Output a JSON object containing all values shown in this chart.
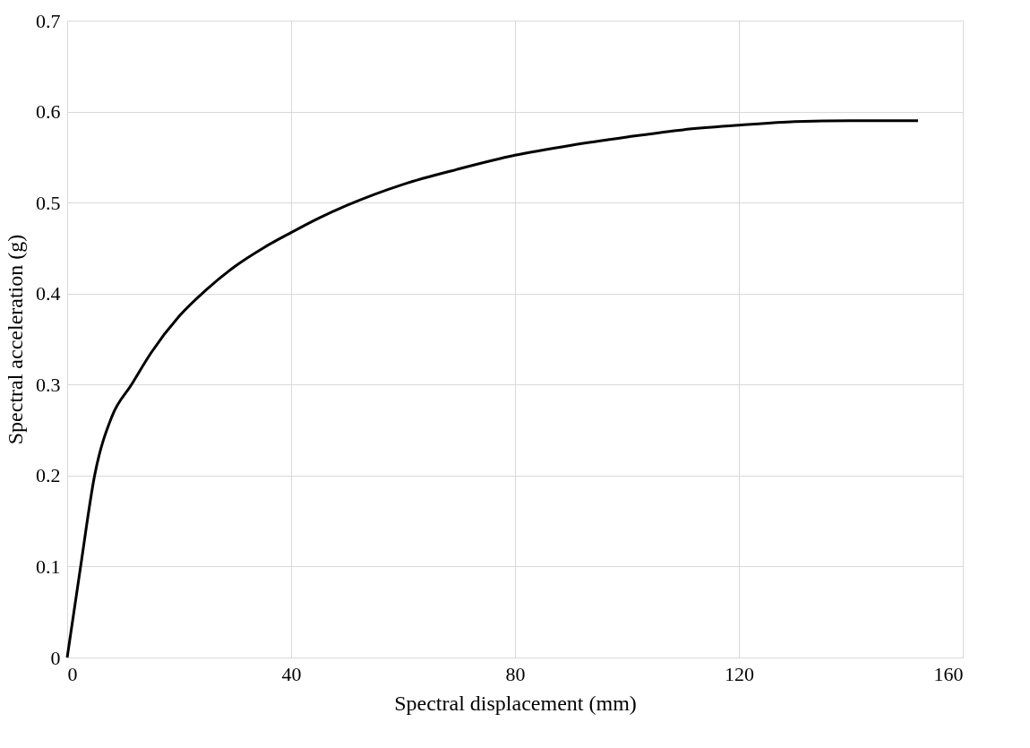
{
  "chart_data": {
    "type": "line",
    "xlabel": "Spectral displacement (mm)",
    "ylabel": "Spectral acceleration (g)",
    "x": [
      0,
      2.4,
      4.9,
      8,
      11.5,
      15,
      20,
      25,
      30,
      35,
      40,
      45,
      50,
      60,
      70,
      80,
      90,
      100,
      110,
      120,
      130,
      140,
      152
    ],
    "series": [
      {
        "color": "#000000",
        "values": [
          0,
          0.1,
          0.2,
          0.265,
          0.3,
          0.335,
          0.375,
          0.405,
          0.43,
          0.45,
          0.467,
          0.483,
          0.497,
          0.52,
          0.537,
          0.552,
          0.563,
          0.572,
          0.58,
          0.585,
          0.589,
          0.59,
          0.59
        ]
      }
    ],
    "xlim": [
      0,
      160
    ],
    "xticks": [
      0,
      40,
      80,
      120,
      160
    ],
    "ylim": [
      0,
      0.7
    ],
    "yticks": [
      {
        "value": 0,
        "label": "0"
      },
      0.1,
      0.2,
      0.3,
      0.4,
      0.5,
      0.6,
      0.7
    ],
    "grid": true,
    "marker": "none",
    "line_style": "solid"
  }
}
